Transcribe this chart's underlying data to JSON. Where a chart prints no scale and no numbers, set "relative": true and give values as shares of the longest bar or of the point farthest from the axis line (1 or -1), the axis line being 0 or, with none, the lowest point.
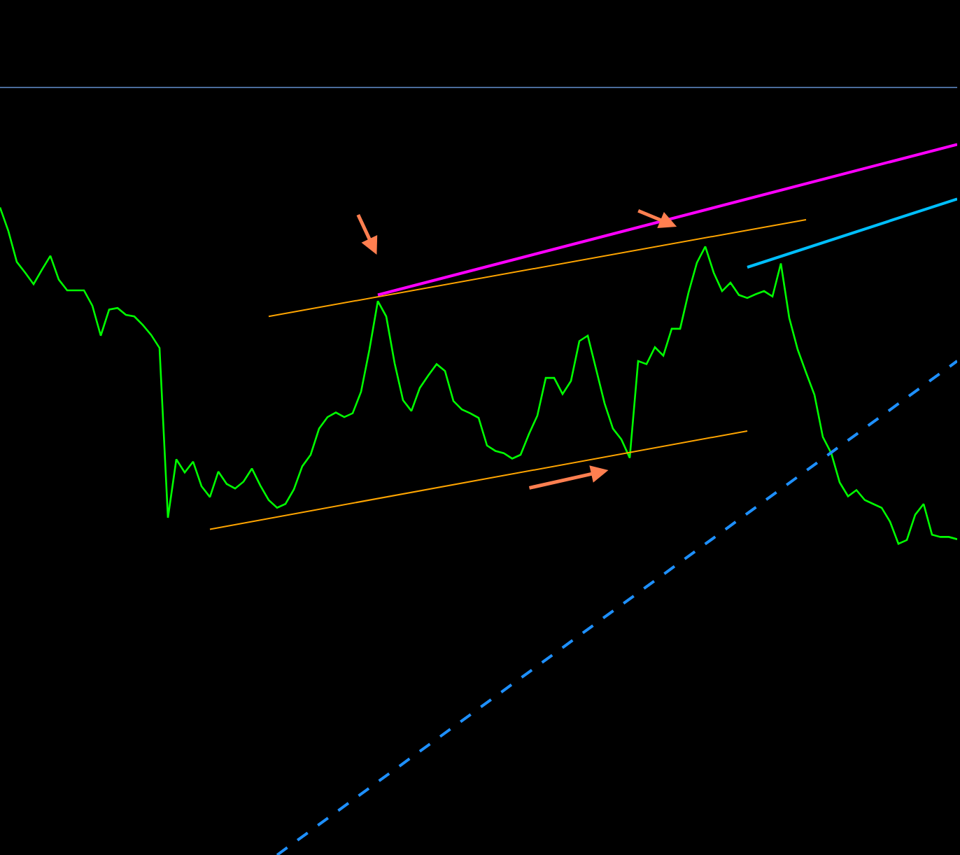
{
  "chart_data": {
    "type": "line",
    "relative": true,
    "grid": false,
    "line_style": "solid",
    "marker": "none",
    "categories": [
      null,
      null,
      null,
      null,
      null,
      null,
      null,
      null,
      null,
      null,
      null,
      null,
      null,
      null,
      null,
      null,
      null,
      null,
      null,
      null,
      null,
      null,
      null,
      null,
      null,
      null,
      null,
      null,
      null,
      null,
      null,
      null,
      null,
      null,
      null,
      null,
      null,
      null,
      null,
      null,
      null,
      null,
      null,
      null,
      null,
      null,
      null,
      null,
      null,
      null,
      null,
      null,
      null,
      null,
      null,
      null,
      null,
      null,
      null,
      null,
      null,
      null,
      null,
      null,
      null,
      null,
      null,
      null,
      null,
      null,
      null,
      null,
      null,
      null,
      null,
      null,
      null,
      null,
      null,
      null,
      null,
      null,
      null,
      null,
      null,
      null,
      null,
      null,
      null,
      null,
      null,
      null,
      null,
      null,
      null,
      null,
      null,
      null,
      null,
      null,
      null,
      null,
      null,
      null,
      null,
      null,
      null,
      null,
      null,
      null,
      null,
      null,
      null,
      null,
      null
    ],
    "series": [
      {
        "color": "#00ff00",
        "values": [
          0.843,
          0.812,
          0.772,
          0.758,
          0.743,
          0.762,
          0.78,
          0.749,
          0.735,
          0.735,
          0.735,
          0.715,
          0.676,
          0.71,
          0.712,
          0.703,
          0.701,
          0.69,
          0.677,
          0.66,
          0.439,
          0.515,
          0.498,
          0.512,
          0.48,
          0.466,
          0.499,
          0.483,
          0.477,
          0.486,
          0.503,
          0.481,
          0.462,
          0.452,
          0.457,
          0.476,
          0.506,
          0.521,
          0.555,
          0.57,
          0.576,
          0.57,
          0.575,
          0.603,
          0.658,
          0.721,
          0.701,
          0.64,
          0.592,
          0.578,
          0.608,
          0.624,
          0.639,
          0.63,
          0.591,
          0.58,
          0.575,
          0.569,
          0.533,
          0.526,
          0.523,
          0.516,
          0.521,
          0.548,
          0.572,
          0.621,
          0.621,
          0.6,
          0.617,
          0.669,
          0.676,
          0.632,
          0.588,
          0.555,
          0.541,
          0.517,
          0.643,
          0.639,
          0.661,
          0.65,
          0.685,
          0.685,
          0.732,
          0.771,
          0.792,
          0.758,
          0.734,
          0.745,
          0.729,
          0.725,
          0.73,
          0.734,
          0.727,
          0.77,
          0.699,
          0.658,
          0.628,
          0.599,
          0.544,
          0.523,
          0.485,
          0.467,
          0.475,
          0.462,
          0.457,
          0.452,
          0.434,
          0.405,
          0.41,
          0.443,
          0.457,
          0.417,
          0.414,
          0.414,
          0.411
        ]
      },
      {
        "color": "#ffa500",
        "values": [
          null,
          null,
          null,
          null,
          null,
          null,
          null,
          null,
          null,
          null,
          null,
          null,
          null,
          null,
          null,
          null,
          null,
          null,
          null,
          null,
          null,
          null,
          null,
          null,
          null,
          null,
          null,
          null,
          null,
          null,
          null,
          null,
          0.701,
          null,
          null,
          null,
          null,
          null,
          null,
          null,
          null,
          null,
          null,
          null,
          null,
          null,
          null,
          null,
          null,
          null,
          null,
          null,
          null,
          null,
          null,
          null,
          null,
          null,
          null,
          null,
          null,
          null,
          null,
          null,
          null,
          null,
          null,
          null,
          null,
          null,
          null,
          null,
          null,
          null,
          null,
          null,
          null,
          null,
          null,
          null,
          null,
          null,
          null,
          null,
          null,
          null,
          null,
          null,
          null,
          null,
          null,
          null,
          null,
          null,
          null,
          null,
          0.827,
          null,
          null,
          null,
          null,
          null,
          null,
          null,
          null,
          null,
          null,
          null,
          null,
          null,
          null,
          null,
          null,
          null,
          null
        ]
      },
      {
        "color": "#ffa500",
        "values": [
          null,
          null,
          null,
          null,
          null,
          null,
          null,
          null,
          null,
          null,
          null,
          null,
          null,
          null,
          null,
          null,
          null,
          null,
          null,
          null,
          null,
          null,
          null,
          null,
          null,
          0.424,
          null,
          null,
          null,
          null,
          null,
          null,
          null,
          null,
          null,
          null,
          null,
          null,
          null,
          null,
          null,
          null,
          null,
          null,
          null,
          null,
          null,
          null,
          null,
          null,
          null,
          null,
          null,
          null,
          null,
          null,
          null,
          null,
          null,
          null,
          null,
          null,
          null,
          null,
          null,
          null,
          null,
          null,
          null,
          null,
          null,
          null,
          null,
          null,
          null,
          null,
          null,
          null,
          null,
          null,
          null,
          null,
          null,
          null,
          null,
          null,
          null,
          null,
          null,
          0.552,
          null,
          null,
          null,
          null,
          null,
          null,
          null,
          null,
          null,
          null,
          null,
          null,
          null,
          null,
          null,
          null,
          null,
          null,
          null,
          null,
          null,
          null,
          null,
          null,
          null
        ]
      },
      {
        "color": "#ff00ff",
        "values": [
          null,
          null,
          null,
          null,
          null,
          null,
          null,
          null,
          null,
          null,
          null,
          null,
          null,
          null,
          null,
          null,
          null,
          null,
          null,
          null,
          null,
          null,
          null,
          null,
          null,
          null,
          null,
          null,
          null,
          null,
          null,
          null,
          null,
          null,
          null,
          null,
          null,
          null,
          null,
          null,
          null,
          null,
          null,
          null,
          null,
          0.729,
          null,
          null,
          null,
          null,
          null,
          null,
          null,
          null,
          null,
          null,
          null,
          null,
          null,
          null,
          null,
          null,
          null,
          null,
          null,
          null,
          null,
          null,
          null,
          null,
          null,
          null,
          null,
          null,
          null,
          null,
          null,
          null,
          null,
          null,
          null,
          null,
          null,
          null,
          null,
          null,
          null,
          null,
          null,
          null,
          null,
          null,
          null,
          null,
          null,
          null,
          null,
          null,
          null,
          null,
          null,
          null,
          null,
          null,
          null,
          null,
          null,
          null,
          null,
          null,
          null,
          null,
          null,
          null,
          0.925
        ]
      },
      {
        "color": "#00bfff",
        "values": [
          null,
          null,
          null,
          null,
          null,
          null,
          null,
          null,
          null,
          null,
          null,
          null,
          null,
          null,
          null,
          null,
          null,
          null,
          null,
          null,
          null,
          null,
          null,
          null,
          null,
          null,
          null,
          null,
          null,
          null,
          null,
          null,
          null,
          null,
          null,
          null,
          null,
          null,
          null,
          null,
          null,
          null,
          null,
          null,
          null,
          null,
          null,
          null,
          null,
          null,
          null,
          null,
          null,
          null,
          null,
          null,
          null,
          null,
          null,
          null,
          null,
          null,
          null,
          null,
          null,
          null,
          null,
          null,
          null,
          null,
          null,
          null,
          null,
          null,
          null,
          null,
          null,
          null,
          null,
          null,
          null,
          null,
          null,
          null,
          null,
          null,
          null,
          null,
          null,
          0.765,
          null,
          null,
          null,
          null,
          null,
          null,
          null,
          null,
          null,
          null,
          null,
          null,
          null,
          null,
          null,
          null,
          null,
          null,
          null,
          null,
          null,
          null,
          null,
          null,
          0.854
        ]
      },
      {
        "color": "#1e90ff",
        "line_style": "dashed",
        "values": [
          null,
          null,
          null,
          null,
          null,
          null,
          null,
          null,
          null,
          null,
          null,
          null,
          null,
          null,
          null,
          null,
          null,
          null,
          null,
          null,
          null,
          null,
          null,
          null,
          null,
          null,
          null,
          null,
          null,
          null,
          null,
          null,
          null,
          0,
          null,
          null,
          null,
          null,
          null,
          null,
          null,
          null,
          null,
          null,
          null,
          null,
          null,
          null,
          null,
          null,
          null,
          null,
          null,
          null,
          null,
          null,
          null,
          null,
          null,
          null,
          null,
          null,
          null,
          null,
          null,
          null,
          null,
          null,
          null,
          null,
          null,
          null,
          null,
          null,
          null,
          null,
          null,
          null,
          null,
          null,
          null,
          null,
          null,
          null,
          null,
          null,
          null,
          null,
          null,
          null,
          null,
          null,
          null,
          null,
          null,
          null,
          null,
          null,
          null,
          null,
          null,
          null,
          null,
          null,
          null,
          null,
          null,
          null,
          null,
          null,
          null,
          null,
          null,
          null,
          0.643
        ]
      },
      {
        "color": "#4a6c9b",
        "values": [
          1,
          null,
          null,
          null,
          null,
          null,
          null,
          null,
          null,
          null,
          null,
          null,
          null,
          null,
          null,
          null,
          null,
          null,
          null,
          null,
          null,
          null,
          null,
          null,
          null,
          null,
          null,
          null,
          null,
          null,
          null,
          null,
          null,
          null,
          null,
          null,
          null,
          null,
          null,
          null,
          null,
          null,
          null,
          null,
          null,
          null,
          null,
          null,
          null,
          null,
          null,
          null,
          null,
          null,
          null,
          null,
          null,
          null,
          null,
          null,
          null,
          null,
          null,
          null,
          null,
          null,
          null,
          null,
          null,
          null,
          null,
          null,
          null,
          null,
          null,
          null,
          null,
          null,
          null,
          null,
          null,
          null,
          null,
          null,
          null,
          null,
          null,
          null,
          null,
          null,
          null,
          null,
          null,
          null,
          null,
          null,
          null,
          null,
          null,
          null,
          null,
          null,
          null,
          null,
          null,
          null,
          null,
          null,
          null,
          null,
          null,
          null,
          null,
          null,
          1
        ]
      }
    ]
  }
}
